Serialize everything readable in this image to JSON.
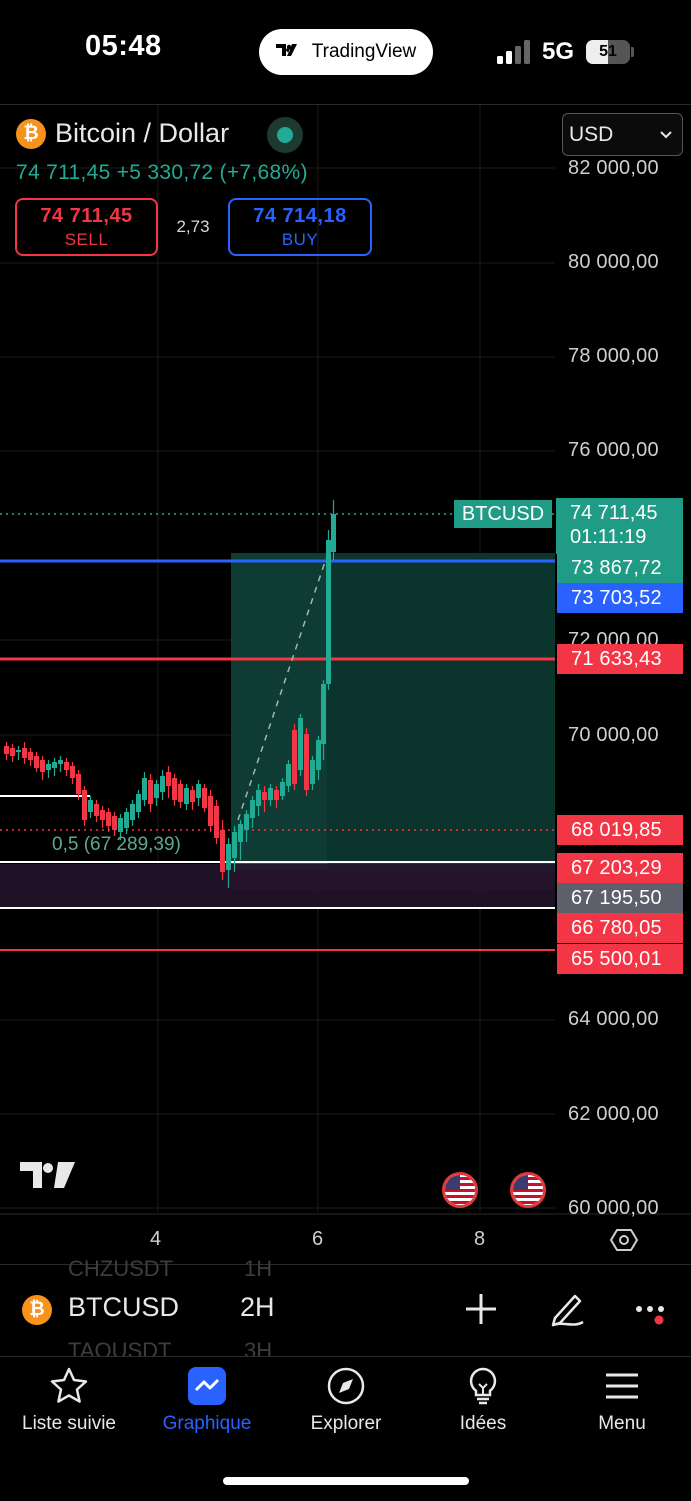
{
  "status_bar": {
    "time": "05:48",
    "app_pill": "TradingView",
    "network": "5G",
    "battery": "51"
  },
  "header": {
    "symbol_name": "Bitcoin / Dollar",
    "price_line": "74 711,45 +5 330,72 (+7,68%)",
    "sell_price": "74 711,45",
    "sell_label": "SELL",
    "spread": "2,73",
    "buy_price": "74 714,18",
    "buy_label": "BUY",
    "currency": "USD",
    "coin_glyph": "₿"
  },
  "y_axis": {
    "labels": [
      {
        "text": "82 000,00",
        "value": 82000
      },
      {
        "text": "80 000,00",
        "value": 80000
      },
      {
        "text": "78 000,00",
        "value": 78000
      },
      {
        "text": "76 000,00",
        "value": 76000
      },
      {
        "text": "72 000,00",
        "value": 72000
      },
      {
        "text": "70 000,00",
        "value": 70000
      },
      {
        "text": "64 000,00",
        "value": 64000
      },
      {
        "text": "62 000,00",
        "value": 62000
      },
      {
        "text": "60 000,00",
        "value": 60000
      }
    ]
  },
  "price_tags": {
    "symbol_label": "BTCUSD",
    "last_price": "74 711,45",
    "countdown": "01:11:19",
    "levels": [
      {
        "text": "73 867,72",
        "value": 73867.72,
        "color": "#1f9b86"
      },
      {
        "text": "73 703,52",
        "value": 73703.52,
        "color": "#2962ff"
      },
      {
        "text": "71 633,43",
        "value": 71633.43,
        "color": "#f23645"
      },
      {
        "text": "68 019,85",
        "value": 68019.85,
        "color": "#f23645"
      },
      {
        "text": "67 203,29",
        "value": 67203.29,
        "color": "#f23645"
      },
      {
        "text": "67 195,50",
        "value": 67195.5,
        "color": "#5d606b"
      },
      {
        "text": "66 780,05",
        "value": 66780.05,
        "color": "#f23645"
      },
      {
        "text": "65 500,01",
        "value": 65500.01,
        "color": "#f23645"
      }
    ],
    "fib_label": "0,5 (67 289,39)"
  },
  "x_axis": {
    "labels": [
      "4",
      "6",
      "8"
    ]
  },
  "colors": {
    "up": "#22ab94",
    "down": "#f23645",
    "blue_line": "#2962ff",
    "accent_nav": "#2962ff"
  },
  "symbol_bar": {
    "ghost_1": "CHZUSDT",
    "ghost_1_interval": "1H",
    "ghost_2": "TAOUSDT",
    "ghost_2_interval": "3H",
    "symbol": "BTCUSD",
    "interval": "2H"
  },
  "bottom_nav": [
    {
      "label": "Liste suivie",
      "icon": "star-icon",
      "active": false
    },
    {
      "label": "Graphique",
      "icon": "chart-icon",
      "active": true
    },
    {
      "label": "Explorer",
      "icon": "compass-icon",
      "active": false
    },
    {
      "label": "Idées",
      "icon": "lightbulb-icon",
      "active": false
    },
    {
      "label": "Menu",
      "icon": "hamburger-icon",
      "active": false
    }
  ]
}
